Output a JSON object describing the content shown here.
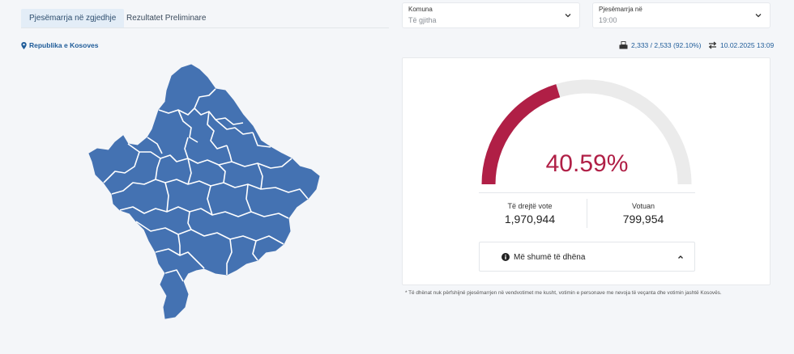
{
  "tabs": [
    {
      "label": "Pjesëmarrja në zgjedhje",
      "active": true
    },
    {
      "label": "Rezultatet Preliminare",
      "active": false
    }
  ],
  "filters": {
    "komuna": {
      "label": "Komuna",
      "value": "Të gjitha"
    },
    "time": {
      "label": "Pjesëmarrja në",
      "value": "19:00"
    }
  },
  "region": {
    "label": "Republika e Kosoves",
    "icon": "map-pin-icon"
  },
  "stations": {
    "text": "2,333 / 2,533 (92.10%)",
    "icon": "ballot-box-icon"
  },
  "updated": {
    "text": "10.02.2025 13:09",
    "icon": "refresh-arrows-icon"
  },
  "turnout": {
    "percent_label": "40.59%",
    "percent": 40.59,
    "color": "#b01f46",
    "track_color": "#ebebeb",
    "eligible_label": "Të drejtë vote",
    "eligible_value": "1,970,944",
    "voted_label": "Votuan",
    "voted_value": "799,954"
  },
  "more": {
    "label": "Më shumë të dhëna",
    "icon": "info-circle-icon"
  },
  "map": {
    "fill": "#4472b2",
    "stroke": "#ffffff"
  },
  "footnote": "* Të dhënat nuk përfshijnë pjesëmarrjen në vendvotimet me kusht, votimin e personave me nevoja të veçanta dhe votimin jashtë Kosovës."
}
